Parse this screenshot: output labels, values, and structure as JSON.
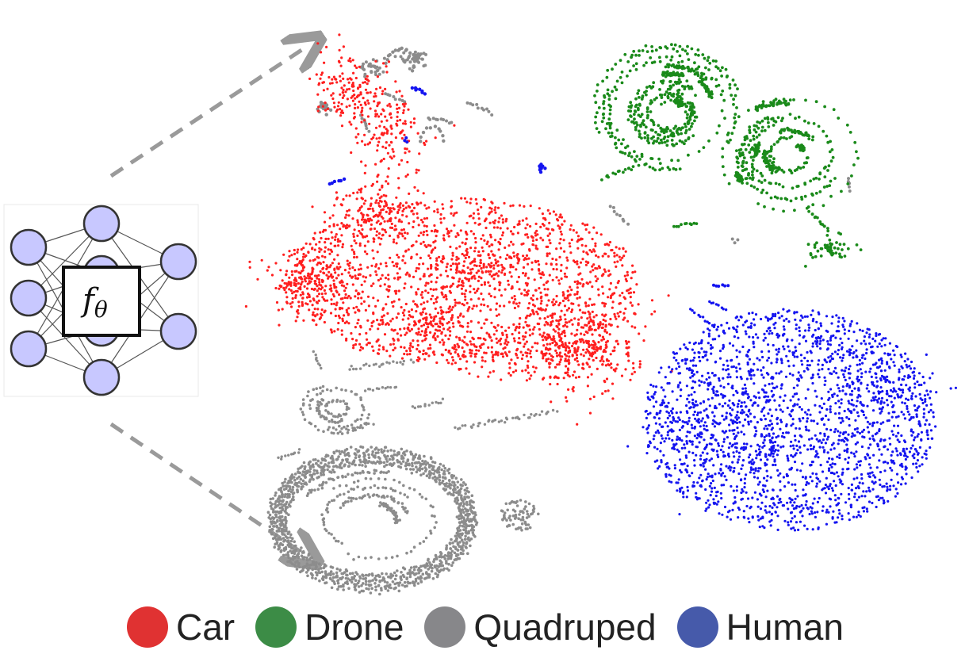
{
  "network": {
    "function_symbol": "f",
    "function_subscript": "θ"
  },
  "colors": {
    "car": "#ff1f1f",
    "drone": "#1a8a1a",
    "quadruped": "#8c8c8c",
    "human": "#1414f0",
    "node_fill": "#c8c8ff",
    "node_stroke": "#333333",
    "arrow": "#9a9a9a"
  },
  "legend": [
    {
      "key": "car",
      "label": "Car",
      "color": "#e03232"
    },
    {
      "key": "drone",
      "label": "Drone",
      "color": "#3c8c46"
    },
    {
      "key": "quadruped",
      "label": "Quadruped",
      "color": "#87878a"
    },
    {
      "key": "human",
      "label": "Human",
      "color": "#465aaa"
    }
  ]
}
